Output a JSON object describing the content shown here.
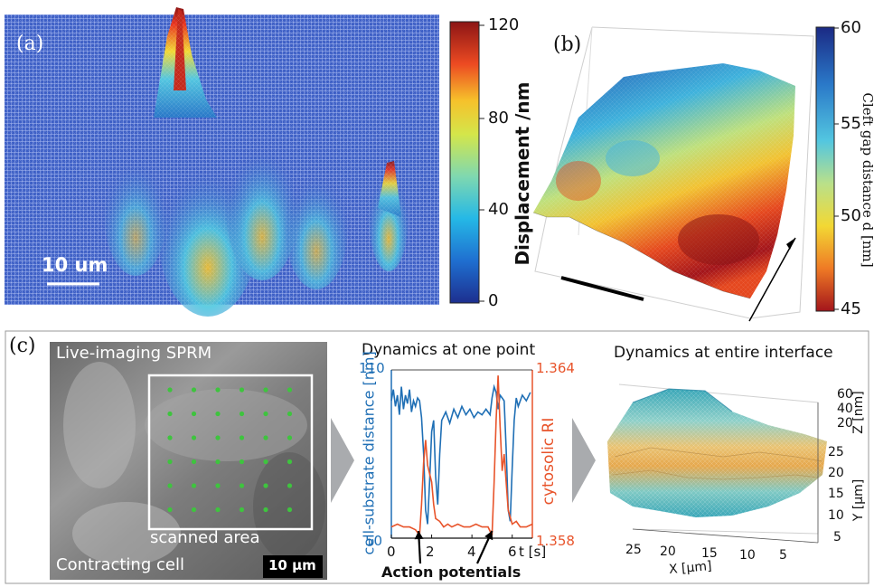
{
  "panel_a": {
    "label": "(a)",
    "scalebar": "10 um",
    "colorbar": {
      "ticks": [
        "120",
        "80",
        "40",
        "0"
      ],
      "title": "Displacement /nm"
    }
  },
  "panel_b": {
    "label": "(b)",
    "colorbar": {
      "ticks": [
        "60",
        "55",
        "50",
        "45"
      ],
      "title": "Cleft gap distance d [nm]"
    }
  },
  "panel_c": {
    "label": "(c)",
    "image": {
      "top_label": "Live-imaging SPRM",
      "scan_label": "scanned area",
      "bottom_label": "Contracting cell",
      "scalebar": "10 µm"
    },
    "chart_data": {
      "type": "line",
      "title": "Dynamics at one point",
      "xlabel": "t [s]",
      "xlim": [
        0,
        7
      ],
      "x_ticks": [
        "0",
        "2",
        "4",
        "6"
      ],
      "y_left": {
        "label": "cell-substrate distance [nm]",
        "ticks": [
          "110",
          "50"
        ],
        "range": [
          50,
          110
        ]
      },
      "y_right": {
        "label": "cytosolic RI",
        "ticks": [
          "1.364",
          "1.358"
        ],
        "range": [
          1.358,
          1.364
        ]
      },
      "annotation": "Action potentials",
      "series": [
        {
          "axis": "left",
          "color": "#1f6fb5",
          "x": [
            0,
            0.1,
            0.2,
            0.3,
            0.4,
            0.5,
            0.6,
            0.7,
            0.8,
            0.9,
            1.0,
            1.1,
            1.2,
            1.3,
            1.4,
            1.5,
            1.6,
            1.7,
            1.8,
            1.9,
            2.0,
            2.1,
            2.2,
            2.3,
            2.4,
            2.5,
            2.7,
            2.9,
            3.1,
            3.3,
            3.5,
            3.7,
            3.9,
            4.1,
            4.3,
            4.5,
            4.7,
            4.9,
            5.0,
            5.1,
            5.2,
            5.3,
            5.4,
            5.5,
            5.6,
            5.7,
            5.8,
            5.9,
            6.0,
            6.1,
            6.2,
            6.3,
            6.5,
            6.7,
            6.9
          ],
          "y": [
            99,
            103,
            97,
            101,
            94,
            104,
            96,
            101,
            98,
            103,
            95,
            99,
            97,
            100,
            99,
            93,
            80,
            60,
            55,
            70,
            88,
            92,
            72,
            62,
            80,
            92,
            95,
            91,
            96,
            93,
            97,
            94,
            96,
            93,
            95,
            94,
            96,
            94,
            100,
            104,
            102,
            96,
            101,
            100,
            99,
            82,
            60,
            56,
            75,
            92,
            100,
            97,
            101,
            99,
            102
          ]
        },
        {
          "axis": "right",
          "color": "#e8542b",
          "x": [
            0,
            0.3,
            0.6,
            0.9,
            1.2,
            1.4,
            1.5,
            1.6,
            1.7,
            1.8,
            1.9,
            2.0,
            2.1,
            2.2,
            2.4,
            2.6,
            2.8,
            3.0,
            3.3,
            3.6,
            3.9,
            4.2,
            4.5,
            4.8,
            5.0,
            5.1,
            5.2,
            5.3,
            5.4,
            5.5,
            5.6,
            5.7,
            5.8,
            6.0,
            6.2,
            6.4,
            6.7,
            7.0
          ],
          "y": [
            1.3584,
            1.3585,
            1.3584,
            1.3584,
            1.3583,
            1.3581,
            1.3592,
            1.3607,
            1.3615,
            1.3606,
            1.3603,
            1.36,
            1.3592,
            1.3587,
            1.3586,
            1.3584,
            1.3585,
            1.3584,
            1.3585,
            1.3584,
            1.3584,
            1.3585,
            1.3584,
            1.3584,
            1.3581,
            1.36,
            1.3622,
            1.3638,
            1.362,
            1.3604,
            1.361,
            1.36,
            1.359,
            1.3585,
            1.3586,
            1.3584,
            1.3584,
            1.3585
          ]
        }
      ]
    },
    "surface": {
      "title": "Dynamics at entire interface",
      "z_label": "Z [nm]",
      "z_ticks": [
        "60",
        "40",
        "20"
      ],
      "y_label": "Y [µm]",
      "y_ticks": [
        "25",
        "20",
        "15",
        "10",
        "5"
      ],
      "x_label": "X [µm]",
      "x_ticks": [
        "25",
        "20",
        "15",
        "10",
        "5"
      ]
    }
  },
  "colors": {
    "jet": [
      "#00007f",
      "#0000ff",
      "#007fff",
      "#00ffff",
      "#7fff7f",
      "#ffff00",
      "#ff7f00",
      "#ff0000",
      "#7f0000"
    ],
    "blue_series": "#1f6fb5",
    "red_series": "#e8542b",
    "scan_dot": "#3ec43e"
  }
}
